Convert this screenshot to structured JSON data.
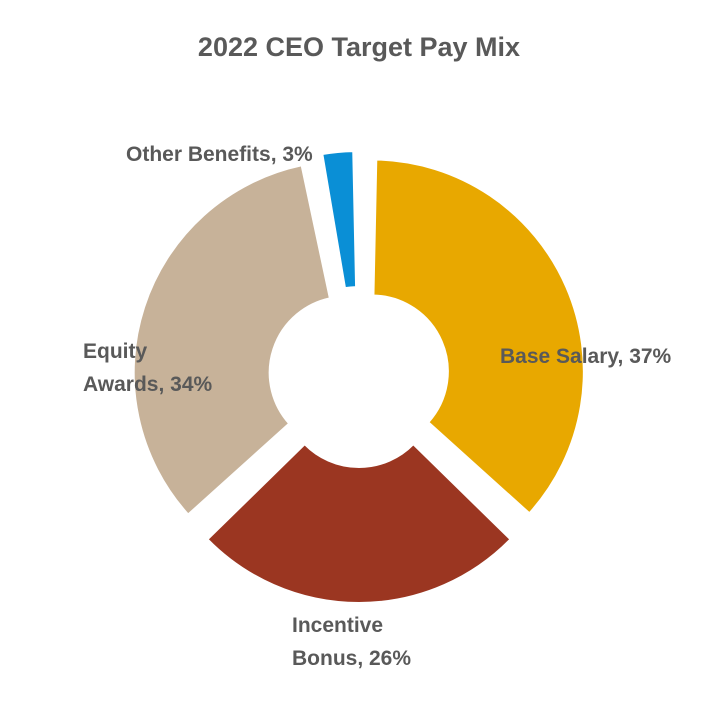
{
  "chart_data": {
    "type": "pie",
    "variant": "exploded-donut",
    "title": "2022 CEO Target Pay Mix",
    "slices": [
      {
        "name": "Base Salary",
        "value": 37,
        "label_lines": [
          "Base Salary, 37%"
        ],
        "color": "#E8A800"
      },
      {
        "name": "Incentive Bonus",
        "value": 26,
        "label_lines": [
          "Incentive",
          "Bonus, 26%"
        ],
        "color": "#9B3621"
      },
      {
        "name": "Equity Awards",
        "value": 34,
        "label_lines": [
          "Equity",
          "Awards, 34%"
        ],
        "color": "#C7B299"
      },
      {
        "name": "Other Benefits",
        "value": 3,
        "label_lines": [
          "Other Benefits, 3%"
        ],
        "color": "#0A8FD6"
      }
    ],
    "start_position": "12 o'clock",
    "direction": "clockwise",
    "legend": "none",
    "grid": false
  }
}
